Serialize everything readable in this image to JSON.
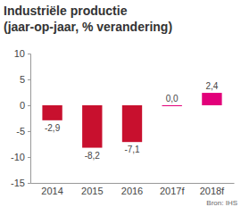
{
  "chart_data": {
    "type": "bar",
    "title": "Industriële productie",
    "subtitle": "(jaar-op-jaar, % verandering)",
    "categories": [
      "2014",
      "2015",
      "2016",
      "2017f",
      "2018f"
    ],
    "values": [
      -2.9,
      -8.2,
      -7.1,
      0.0,
      2.4
    ],
    "value_labels": [
      "-2,9",
      "-8,2",
      "-7,1",
      "0,0",
      "2,4"
    ],
    "colors": [
      "#c8102e",
      "#c8102e",
      "#c8102e",
      "#e2007a",
      "#e2007a"
    ],
    "ylim": [
      -15,
      10
    ],
    "yticks": [
      -15,
      -10,
      -5,
      0,
      5,
      10
    ],
    "grid": false,
    "data_labels": true,
    "annotations": [
      "Bron: IHS"
    ]
  }
}
